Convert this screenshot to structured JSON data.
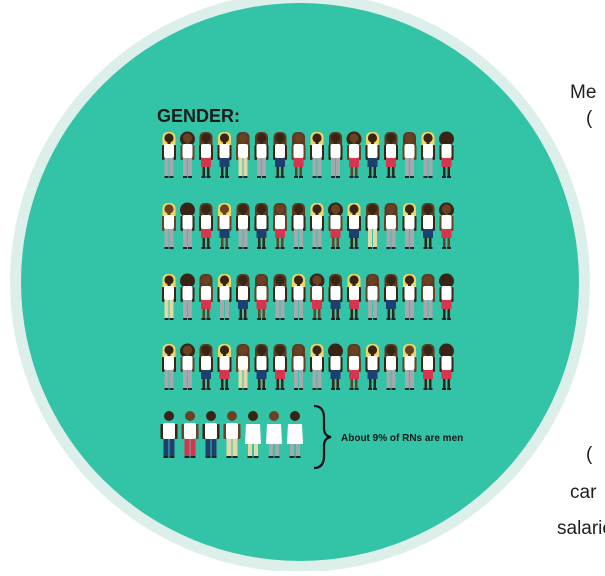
{
  "title": "GENDER:",
  "caption": "About 9% of RNs are men",
  "side_fragments": [
    "Me",
    "(",
    "(",
    "car",
    "salarie"
  ],
  "colors": {
    "teal": "#33C3A6",
    "teal_rim": "#DDEFEA",
    "skin_dark": "#3A2415",
    "skin_med": "#6A4124",
    "hair_blonde": "#F2D664",
    "hair_brown": "#5C3A1E",
    "shirt_white": "#FFFFFF",
    "pants_gray": "#A3A9AD",
    "pants_lightgray": "#BFC8CC",
    "pants_red": "#D6344F",
    "pants_navy": "#1F3F6E",
    "pants_tan": "#E4D7A8",
    "text_dark": "#1A1A1A"
  },
  "figures": {
    "women_rows": [
      [
        "blonde-gray",
        "afro-gray",
        "brown-red",
        "blonde-navy",
        "brown-tan",
        "brown-gray",
        "brown-navy",
        "brown-red",
        "blonde-gray",
        "brown-gray",
        "afro-red",
        "blonde-navy",
        "brown-red",
        "brown-gray",
        "blonde-gray",
        "afro-red"
      ],
      [
        "blonde-gray",
        "afro-gray",
        "brown-red",
        "blonde-navy",
        "brown-gray",
        "brown-navy",
        "brown-red",
        "brown-gray",
        "blonde-gray",
        "afro-red",
        "blonde-navy",
        "brown-tan",
        "brown-gray",
        "blonde-gray",
        "brown-navy",
        "afro-red"
      ],
      [
        "blonde-tan",
        "afro-gray",
        "brown-red",
        "blonde-gray",
        "brown-navy",
        "brown-red",
        "brown-gray",
        "blonde-gray",
        "afro-red",
        "brown-navy",
        "blonde-red",
        "brown-gray",
        "brown-navy",
        "blonde-gray",
        "brown-gray",
        "afro-red"
      ],
      [
        "blonde-gray",
        "afro-gray",
        "brown-navy",
        "blonde-red",
        "brown-tan",
        "brown-navy",
        "brown-red",
        "brown-gray",
        "blonde-gray",
        "afro-navy",
        "brown-red",
        "blonde-navy",
        "brown-gray",
        "blonde-gray",
        "brown-red",
        "afro-red"
      ]
    ],
    "men": [
      "navy",
      "red",
      "navy",
      "tan",
      "white-tan",
      "white-gray",
      "white-gray"
    ]
  }
}
